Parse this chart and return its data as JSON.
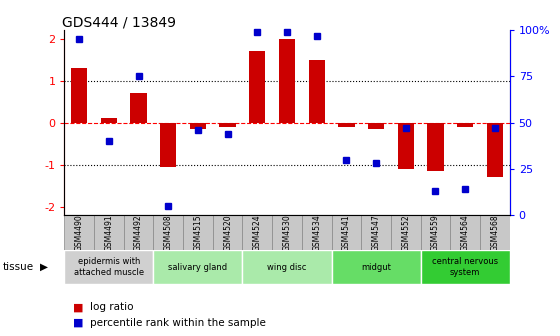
{
  "title": "GDS444 / 13849",
  "samples": [
    "GSM4490",
    "GSM4491",
    "GSM4492",
    "GSM4508",
    "GSM4515",
    "GSM4520",
    "GSM4524",
    "GSM4530",
    "GSM4534",
    "GSM4541",
    "GSM4547",
    "GSM4552",
    "GSM4559",
    "GSM4564",
    "GSM4568"
  ],
  "log_ratio": [
    1.3,
    0.1,
    0.7,
    -1.05,
    -0.15,
    -0.1,
    1.7,
    2.0,
    1.5,
    -0.1,
    -0.15,
    -1.1,
    -1.15,
    -0.1,
    -1.3
  ],
  "percentile": [
    95,
    40,
    75,
    5,
    46,
    44,
    99,
    99,
    97,
    30,
    28,
    47,
    13,
    14,
    47
  ],
  "tissue_groups": [
    {
      "label": "epidermis with\nattached muscle",
      "start": 0,
      "end": 3,
      "color": "#d0d0d0"
    },
    {
      "label": "salivary gland",
      "start": 3,
      "end": 6,
      "color": "#aaeaaa"
    },
    {
      "label": "wing disc",
      "start": 6,
      "end": 9,
      "color": "#aaeaaa"
    },
    {
      "label": "midgut",
      "start": 9,
      "end": 12,
      "color": "#66dd66"
    },
    {
      "label": "central nervous\nsystem",
      "start": 12,
      "end": 15,
      "color": "#33cc33"
    }
  ],
  "bar_color": "#cc0000",
  "dot_color": "#0000cc",
  "ylim_left": [
    -2.2,
    2.2
  ],
  "ylim_right": [
    0,
    100
  ],
  "yticks_left": [
    -2,
    -1,
    0,
    1,
    2
  ],
  "yticks_right": [
    0,
    25,
    50,
    75,
    100
  ],
  "hline_positions": [
    -1,
    0,
    1
  ],
  "hline_styles": [
    "dotted",
    "dashed",
    "dotted"
  ],
  "hline_colors": [
    "black",
    "red",
    "black"
  ],
  "cell_color": "#c8c8c8",
  "cell_edge": "#888888"
}
